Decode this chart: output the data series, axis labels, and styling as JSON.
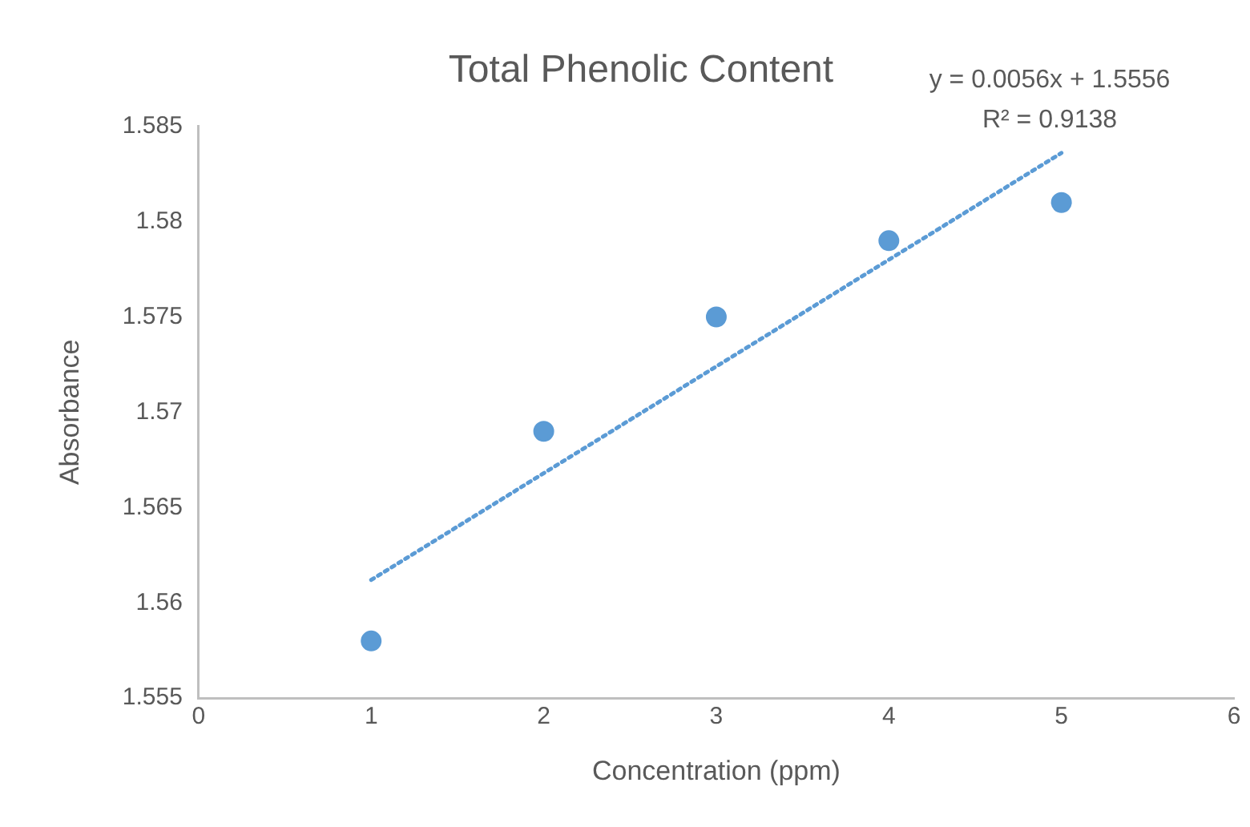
{
  "chart_data": {
    "type": "scatter",
    "title": "Total Phenolic Content",
    "xlabel": "Concentration (ppm)",
    "ylabel": "Absorbance",
    "annotations": [
      "y = 0.0056x + 1.5556",
      "R² = 0.9138"
    ],
    "x": [
      1,
      2,
      3,
      4,
      5
    ],
    "series": [
      {
        "color": "#5b9bd5",
        "values": [
          1.558,
          1.569,
          1.575,
          1.579,
          1.581
        ]
      },
      {
        "type": "line",
        "color": "#5b9bd5",
        "x": [
          1,
          5
        ],
        "values": [
          1.5612,
          1.5836
        ],
        "marker": "none",
        "line_style": "dotted"
      }
    ],
    "marker": "circle",
    "xlim": [
      0,
      6
    ],
    "xticks": [
      0,
      1,
      2,
      3,
      4,
      5,
      6
    ],
    "ylim": [
      1.555,
      1.585
    ],
    "yticks": [
      1.555,
      1.56,
      1.565,
      1.57,
      1.575,
      1.58,
      1.585
    ],
    "grid": false,
    "legend": false
  }
}
